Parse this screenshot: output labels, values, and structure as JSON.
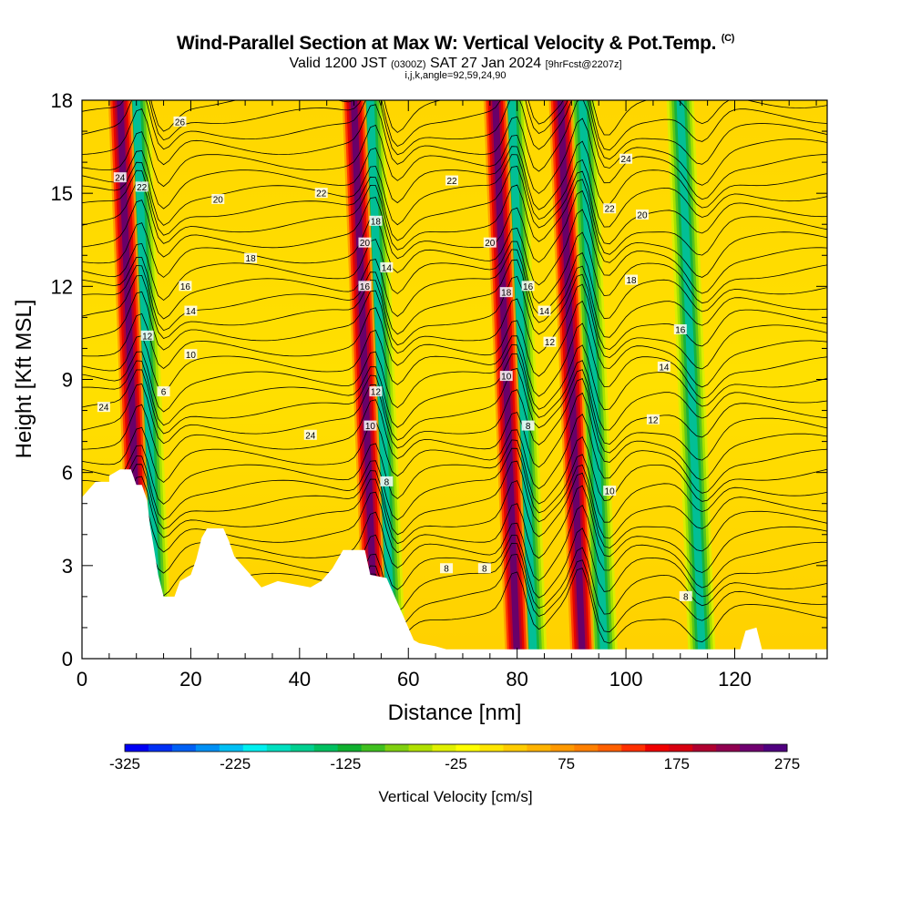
{
  "chart_data": {
    "type": "heatmap",
    "title": "Wind-Parallel Section at Max W: Vertical Velocity & Pot.Temp.",
    "title_mark": "(C)",
    "subtitle": {
      "valid": "Valid 1200 JST",
      "utc": "(0300Z)",
      "date": "SAT 27 Jan 2024",
      "fcst": "[9hrFcst@2207z]"
    },
    "subtitle2": "i,j,k,angle=92,59,24,90",
    "xlabel": "Distance [nm]",
    "ylabel": "Height [Kft MSL]",
    "xlim": [
      0,
      137
    ],
    "ylim": [
      0,
      18
    ],
    "xticks": [
      "0",
      "20",
      "40",
      "60",
      "80",
      "100",
      "120"
    ],
    "yticks": [
      "0",
      "3",
      "6",
      "9",
      "12",
      "15",
      "18"
    ],
    "colorbar": {
      "label": "Vertical Velocity [cm/s]",
      "tick_labels": [
        "-325",
        "-225",
        "-125",
        "-25",
        "75",
        "175",
        "275"
      ],
      "colors": [
        "#0000f5",
        "#0030f5",
        "#0060f5",
        "#0090f5",
        "#00c0f5",
        "#00f0f0",
        "#00e0c0",
        "#00d090",
        "#00c060",
        "#10b030",
        "#40c020",
        "#80d010",
        "#b0e000",
        "#e0f000",
        "#ffff00",
        "#ffe600",
        "#ffcc00",
        "#ffb300",
        "#ff9900",
        "#ff8000",
        "#ff6000",
        "#ff3000",
        "#f00000",
        "#d80010",
        "#b00030",
        "#900050",
        "#700070",
        "#500080"
      ]
    },
    "updraft_bands_nm": [
      11,
      54,
      80,
      92
    ],
    "downdraft_bands_nm": [
      14,
      57,
      83,
      96,
      114
    ],
    "theta_contour_labels_C": [
      "6",
      "8",
      "10",
      "12",
      "14",
      "16",
      "18",
      "20",
      "22",
      "24",
      "26"
    ],
    "contour_label_marks": [
      "26",
      "24",
      "22",
      "20",
      "18",
      "16",
      "14",
      "12",
      "10",
      "6",
      "24",
      "22",
      "20",
      "18",
      "16",
      "14",
      "12",
      "10",
      "8",
      "24",
      "22",
      "20",
      "18",
      "16",
      "14",
      "12",
      "10",
      "8",
      "8",
      "8",
      "24",
      "22",
      "20",
      "18",
      "16",
      "14",
      "12",
      "10",
      "8"
    ]
  }
}
